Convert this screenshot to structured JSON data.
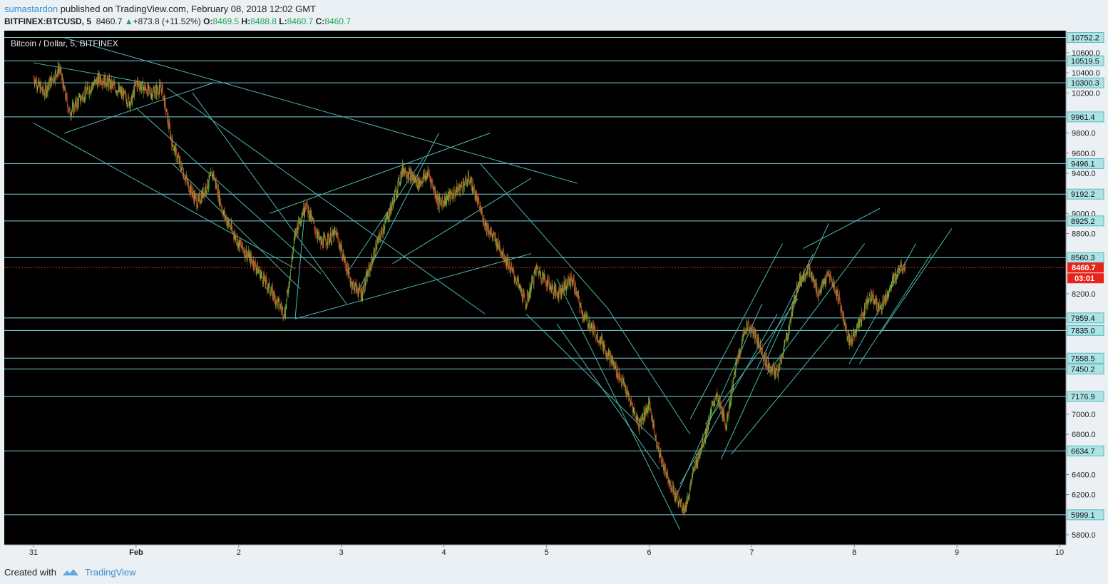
{
  "header": {
    "author": "sumastardon",
    "published_text": " published on TradingView.com, February 08, 2018 12:02 GMT",
    "symbol": "BITFINEX:BTCUSD, 5",
    "last": "8460.7",
    "change_arrow": "▲",
    "change": "+873.8 (+11.52%)",
    "open_label": "O:",
    "open": "8469.5",
    "high_label": "H:",
    "high": "8488.8",
    "low_label": "L:",
    "low": "8460.7",
    "close_label": "C:",
    "close": "8460.7"
  },
  "footer": {
    "created_with": "Created with",
    "brand": "TradingView"
  },
  "colors": {
    "background": "#000000",
    "level_line": "#7fd3d8",
    "trend_line": "#4db6ac",
    "candle_up": "#6fc23a",
    "candle_down": "#d1452c",
    "current_price": "#e8231a",
    "axis_bg": "#eaf0f4"
  },
  "chart_data": {
    "type": "candlestick",
    "title": "Bitcoin / Dollar, 5, BITFINEX",
    "x_ticks": [
      "31",
      "Feb",
      "2",
      "3",
      "4",
      "5",
      "6",
      "7",
      "8",
      "9",
      "10"
    ],
    "x_tick_values": [
      0,
      1,
      2,
      3,
      4,
      5,
      6,
      7,
      8,
      9,
      10
    ],
    "xlim": [
      0,
      10.28
    ],
    "y_ticks": [
      5800.0,
      6200.0,
      6400.0,
      6800.0,
      7000.0,
      8200.0,
      8800.0,
      9000.0,
      9400.0,
      9600.0,
      9800.0,
      10200.0,
      10400.0,
      10600.0
    ],
    "ylim": [
      5700,
      10820
    ],
    "horizontal_levels": [
      10752.2,
      10519.5,
      10300.3,
      9961.4,
      9496.1,
      9192.2,
      8925.2,
      8560.3,
      7959.4,
      7835.0,
      7558.5,
      7450.2,
      7176.9,
      6634.7,
      5999.1
    ],
    "current_price": {
      "value": "8460.7",
      "countdown": "03:01"
    },
    "price_path": [
      [
        0.0,
        10350
      ],
      [
        0.1,
        10200
      ],
      [
        0.25,
        10450
      ],
      [
        0.35,
        10000
      ],
      [
        0.5,
        10200
      ],
      [
        0.65,
        10350
      ],
      [
        0.8,
        10250
      ],
      [
        0.95,
        10100
      ],
      [
        1.0,
        10300
      ],
      [
        1.15,
        10200
      ],
      [
        1.25,
        10250
      ],
      [
        1.35,
        9700
      ],
      [
        1.5,
        9300
      ],
      [
        1.6,
        9100
      ],
      [
        1.75,
        9400
      ],
      [
        1.85,
        9000
      ],
      [
        2.0,
        8700
      ],
      [
        2.15,
        8500
      ],
      [
        2.3,
        8250
      ],
      [
        2.45,
        8000
      ],
      [
        2.55,
        8800
      ],
      [
        2.65,
        9100
      ],
      [
        2.8,
        8700
      ],
      [
        2.95,
        8800
      ],
      [
        3.1,
        8300
      ],
      [
        3.2,
        8200
      ],
      [
        3.35,
        8700
      ],
      [
        3.5,
        9100
      ],
      [
        3.6,
        9450
      ],
      [
        3.75,
        9300
      ],
      [
        3.85,
        9400
      ],
      [
        3.95,
        9100
      ],
      [
        4.1,
        9200
      ],
      [
        4.25,
        9350
      ],
      [
        4.4,
        8900
      ],
      [
        4.55,
        8650
      ],
      [
        4.7,
        8350
      ],
      [
        4.8,
        8100
      ],
      [
        4.9,
        8450
      ],
      [
        5.1,
        8200
      ],
      [
        5.25,
        8350
      ],
      [
        5.35,
        8000
      ],
      [
        5.55,
        7700
      ],
      [
        5.75,
        7300
      ],
      [
        5.9,
        6900
      ],
      [
        6.0,
        7100
      ],
      [
        6.1,
        6600
      ],
      [
        6.25,
        6200
      ],
      [
        6.35,
        6050
      ],
      [
        6.45,
        6500
      ],
      [
        6.55,
        6800
      ],
      [
        6.65,
        7200
      ],
      [
        6.75,
        6900
      ],
      [
        6.85,
        7500
      ],
      [
        6.95,
        7900
      ],
      [
        7.05,
        7750
      ],
      [
        7.15,
        7500
      ],
      [
        7.25,
        7400
      ],
      [
        7.35,
        7800
      ],
      [
        7.45,
        8300
      ],
      [
        7.55,
        8450
      ],
      [
        7.65,
        8200
      ],
      [
        7.75,
        8400
      ],
      [
        7.85,
        8150
      ],
      [
        7.95,
        7700
      ],
      [
        8.05,
        7900
      ],
      [
        8.15,
        8200
      ],
      [
        8.25,
        8050
      ],
      [
        8.35,
        8250
      ],
      [
        8.45,
        8500
      ],
      [
        8.5,
        8460.7
      ]
    ],
    "trend_lines": [
      [
        [
          0.0,
          10500
        ],
        [
          1.1,
          10300
        ]
      ],
      [
        [
          0.0,
          9900
        ],
        [
          2.55,
          8450
        ]
      ],
      [
        [
          0.3,
          9800
        ],
        [
          1.75,
          10300
        ]
      ],
      [
        [
          0.3,
          10750
        ],
        [
          5.3,
          9300
        ]
      ],
      [
        [
          1.0,
          10050
        ],
        [
          2.8,
          8400
        ]
      ],
      [
        [
          1.3,
          10250
        ],
        [
          4.4,
          8000
        ]
      ],
      [
        [
          1.55,
          10200
        ],
        [
          3.05,
          8100
        ]
      ],
      [
        [
          1.35,
          9500
        ],
        [
          2.6,
          8250
        ]
      ],
      [
        [
          2.55,
          7950
        ],
        [
          4.85,
          8600
        ]
      ],
      [
        [
          2.55,
          7950
        ],
        [
          2.65,
          9100
        ]
      ],
      [
        [
          2.3,
          9000
        ],
        [
          4.45,
          9800
        ]
      ],
      [
        [
          3.15,
          8200
        ],
        [
          3.95,
          9800
        ]
      ],
      [
        [
          3.5,
          8500
        ],
        [
          4.85,
          9350
        ]
      ],
      [
        [
          3.05,
          8400
        ],
        [
          3.8,
          9550
        ]
      ],
      [
        [
          4.35,
          9500
        ],
        [
          5.6,
          8050
        ]
      ],
      [
        [
          4.8,
          8000
        ],
        [
          6.1,
          6700
        ]
      ],
      [
        [
          5.1,
          7900
        ],
        [
          6.1,
          6450
        ]
      ],
      [
        [
          5.6,
          8050
        ],
        [
          6.4,
          6800
        ]
      ],
      [
        [
          6.3,
          5850
        ],
        [
          5.1,
          8350
        ]
      ],
      [
        [
          6.25,
          6150
        ],
        [
          7.1,
          8100
        ]
      ],
      [
        [
          6.4,
          6950
        ],
        [
          7.3,
          8700
        ]
      ],
      [
        [
          7.05,
          7450
        ],
        [
          7.6,
          8600
        ]
      ],
      [
        [
          7.15,
          7400
        ],
        [
          8.1,
          8700
        ]
      ],
      [
        [
          7.5,
          8650
        ],
        [
          8.25,
          9050
        ]
      ],
      [
        [
          7.95,
          7500
        ],
        [
          8.6,
          8700
        ]
      ],
      [
        [
          8.25,
          7800
        ],
        [
          8.95,
          8850
        ]
      ],
      [
        [
          6.7,
          6550
        ],
        [
          7.75,
          8900
        ]
      ],
      [
        [
          6.3,
          6300
        ],
        [
          7.25,
          8000
        ]
      ],
      [
        [
          6.55,
          6900
        ],
        [
          7.45,
          8150
        ]
      ],
      [
        [
          6.8,
          6600
        ],
        [
          7.85,
          7900
        ]
      ],
      [
        [
          8.05,
          7500
        ],
        [
          8.75,
          8600
        ]
      ]
    ],
    "ylabel": "",
    "xlabel": "",
    "grid": false,
    "legend": "none"
  }
}
